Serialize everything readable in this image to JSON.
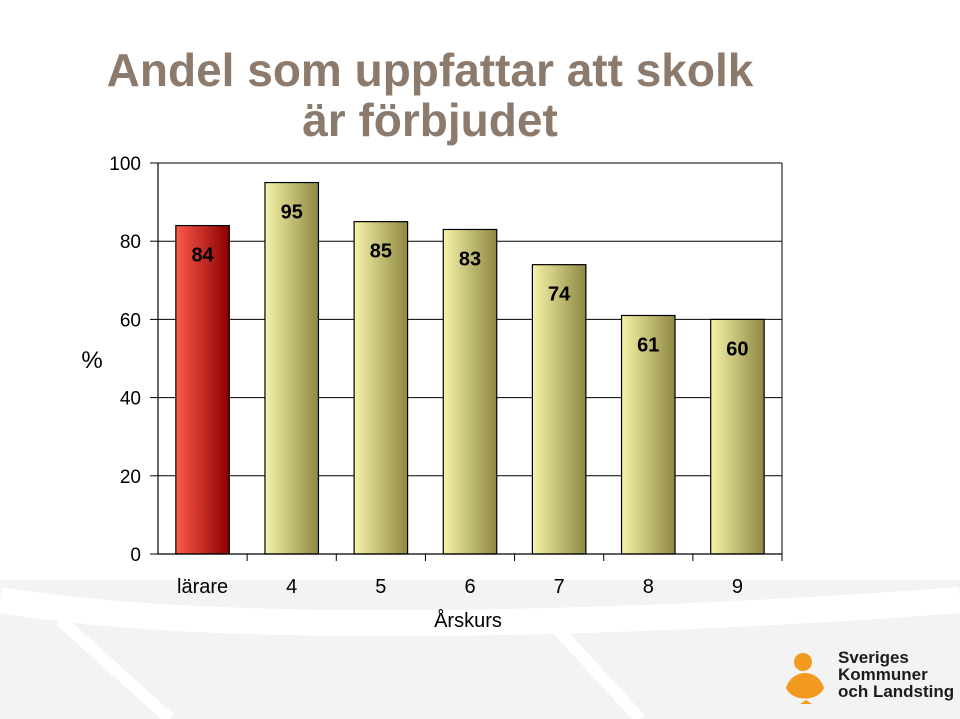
{
  "slide": {
    "title_line_1": "Andel som uppfattar att skolk",
    "title_line_2": "är förbjudet"
  },
  "logo": {
    "line_1": "Sveriges",
    "line_2": "Kommuner",
    "line_3": "och Landsting",
    "colors": {
      "orange": "#f29a1f",
      "text": "#1c1c1c"
    }
  },
  "chart_data": {
    "type": "bar",
    "categories": [
      "lärare",
      "4",
      "5",
      "6",
      "7",
      "8",
      "9"
    ],
    "values": [
      84,
      95,
      85,
      83,
      74,
      61,
      60
    ],
    "xlabel": "Årskurs",
    "ylabel": "%",
    "ylim": [
      0,
      100
    ],
    "yticks": [
      "0",
      "20",
      "40",
      "60",
      "80",
      "100"
    ],
    "grid": true,
    "legend": "none",
    "highlight_category": "lärare",
    "colors": {
      "highlight_light": "#ff5a4a",
      "highlight_dark": "#8a0000",
      "bar_light": "#f6f3a8",
      "bar_dark": "#8e8842",
      "grid": "#000000"
    }
  }
}
